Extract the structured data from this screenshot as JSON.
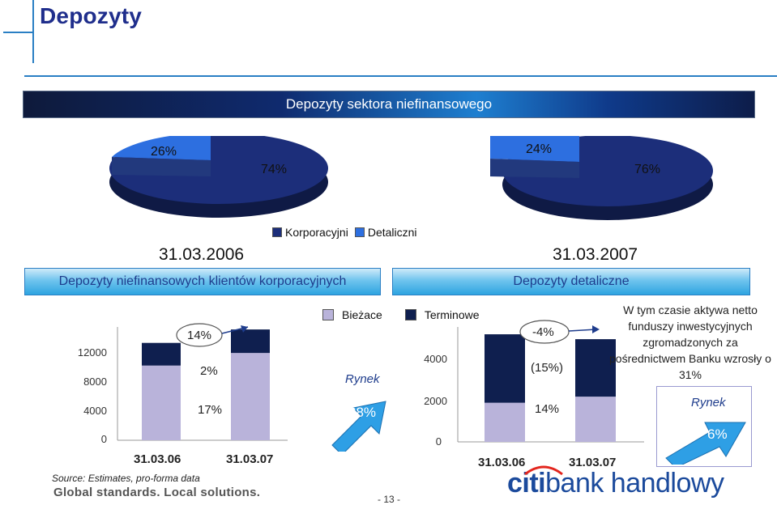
{
  "page": {
    "title": "Depozyty",
    "banner": "Depozyty sektora niefinansowego",
    "page_number": "- 13 -",
    "source": "Source:  Estimates, pro-forma data",
    "slogan": "Global standards. Local solutions.",
    "brand_citi": "citi",
    "brand_rest": "bank handlowy"
  },
  "pies": {
    "legend": [
      "Korporacyjni",
      "Detaliczni"
    ],
    "left_date": "31.03.2006",
    "right_date": "31.03.2007",
    "left_labels": [
      "26%",
      "74%"
    ],
    "right_labels": [
      "24%",
      "76%"
    ]
  },
  "corporate": {
    "header": "Depozyty niefinansowych klientów korporacyjnych",
    "growth_total": "14%",
    "growth_top": "2%",
    "growth_bottom": "17%",
    "ticks": [
      "12000",
      "8000",
      "4000",
      "0"
    ]
  },
  "legend_mid": {
    "current": "Bieżace",
    "term": "Terminowe",
    "rynek_label": "Rynek",
    "rynek_value": "28%"
  },
  "retail": {
    "header": "Depozyty detaliczne",
    "growth_total": "-4%",
    "growth_top": "(15%)",
    "growth_bottom": "14%",
    "ticks": [
      "4000",
      "2000",
      "0"
    ],
    "note": "W tym czasie aktywa netto funduszy inwestycyjnych zgromadzonych za pośrednictwem Banku wzrosły o 31%",
    "rynek_label": "Rynek",
    "rynek_value": "6%"
  },
  "chart_data": [
    {
      "type": "pie",
      "title": "31.03.2006",
      "slices": [
        {
          "name": "Korporacyjni",
          "value": 74
        },
        {
          "name": "Detaliczni",
          "value": 26
        }
      ],
      "colors": {
        "Korporacyjni": "#1c2e7a",
        "Detaliczni": "#2d6fe0"
      }
    },
    {
      "type": "pie",
      "title": "31.03.2007",
      "slices": [
        {
          "name": "Korporacyjni",
          "value": 76
        },
        {
          "name": "Detaliczni",
          "value": 24
        }
      ],
      "colors": {
        "Korporacyjni": "#1c2e7a",
        "Detaliczni": "#2d6fe0"
      }
    },
    {
      "type": "bar",
      "stacked": true,
      "categories": [
        "31.03.06",
        "31.03.07"
      ],
      "series": [
        {
          "name": "Bieżace",
          "values": [
            8900,
            10400
          ]
        },
        {
          "name": "Terminowe",
          "values": [
            2700,
            2800
          ]
        }
      ],
      "ylim": [
        0,
        13500
      ],
      "yticks": [
        0,
        4000,
        8000,
        12000
      ],
      "colors": {
        "Bieżace": "#b9b3da",
        "Terminowe": "#0f1f4f"
      }
    },
    {
      "type": "bar",
      "stacked": true,
      "categories": [
        "31.03.06",
        "31.03.07"
      ],
      "series": [
        {
          "name": "Bieżace",
          "values": [
            1600,
            1850
          ]
        },
        {
          "name": "Terminowe",
          "values": [
            2800,
            2350
          ]
        }
      ],
      "ylim": [
        0,
        4700
      ],
      "yticks": [
        0,
        2000,
        4000
      ],
      "colors": {
        "Bieżace": "#b9b3da",
        "Terminowe": "#0f1f4f"
      }
    }
  ]
}
